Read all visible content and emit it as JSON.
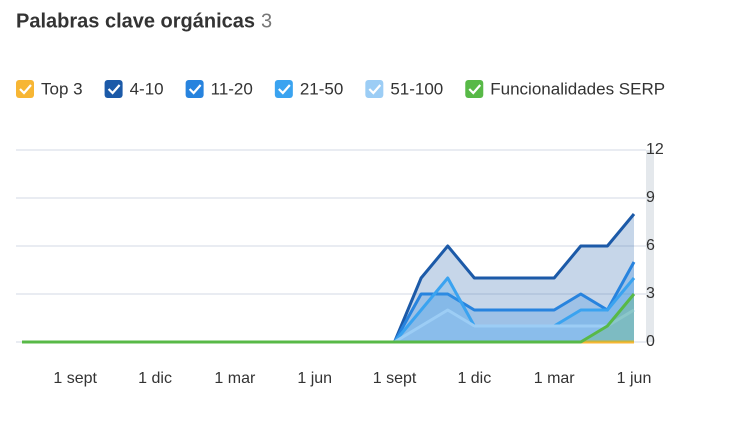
{
  "chart_data": {
    "type": "line",
    "title": "Palabras clave orgánicas",
    "count": 3,
    "categories": [
      null,
      null,
      "1 sept",
      null,
      null,
      "1 dic",
      null,
      null,
      "1 mar",
      null,
      null,
      "1 jun",
      null,
      null,
      "1 sept",
      null,
      null,
      "1 dic",
      null,
      null,
      "1 mar",
      null,
      null,
      "1 jun"
    ],
    "series": [
      {
        "name": "Top 3",
        "color": "#f7b634",
        "values": [
          0,
          0,
          0,
          0,
          0,
          0,
          0,
          0,
          0,
          0,
          0,
          0,
          0,
          0,
          0,
          0,
          0,
          0,
          0,
          0,
          0,
          0,
          0,
          0
        ]
      },
      {
        "name": "4-10",
        "color": "#1c5aa8",
        "values": [
          0,
          0,
          0,
          0,
          0,
          0,
          0,
          0,
          0,
          0,
          0,
          0,
          0,
          0,
          0,
          4,
          6,
          4,
          4,
          4,
          4,
          6,
          6,
          8
        ]
      },
      {
        "name": "11-20",
        "color": "#2783de",
        "values": [
          0,
          0,
          0,
          0,
          0,
          0,
          0,
          0,
          0,
          0,
          0,
          0,
          0,
          0,
          0,
          3,
          3,
          2,
          2,
          2,
          2,
          3,
          2,
          5
        ]
      },
      {
        "name": "21-50",
        "color": "#3aa3f0",
        "values": [
          0,
          0,
          0,
          0,
          0,
          0,
          0,
          0,
          0,
          0,
          0,
          0,
          0,
          0,
          0,
          2,
          4,
          1,
          1,
          1,
          1,
          2,
          2,
          4
        ]
      },
      {
        "name": "51-100",
        "color": "#9ccdf5",
        "values": [
          0,
          0,
          0,
          0,
          0,
          0,
          0,
          0,
          0,
          0,
          0,
          0,
          0,
          0,
          0,
          1,
          2,
          1,
          1,
          1,
          1,
          1,
          1,
          2
        ]
      },
      {
        "name": "Funcionalidades SERP",
        "color": "#58b947",
        "values": [
          0,
          0,
          0,
          0,
          0,
          0,
          0,
          0,
          0,
          0,
          0,
          0,
          0,
          0,
          0,
          0,
          0,
          0,
          0,
          0,
          0,
          0,
          1,
          3
        ]
      }
    ],
    "ylim": [
      0,
      12
    ],
    "yticks": [
      0,
      3,
      6,
      9,
      12
    ],
    "grid": true
  }
}
